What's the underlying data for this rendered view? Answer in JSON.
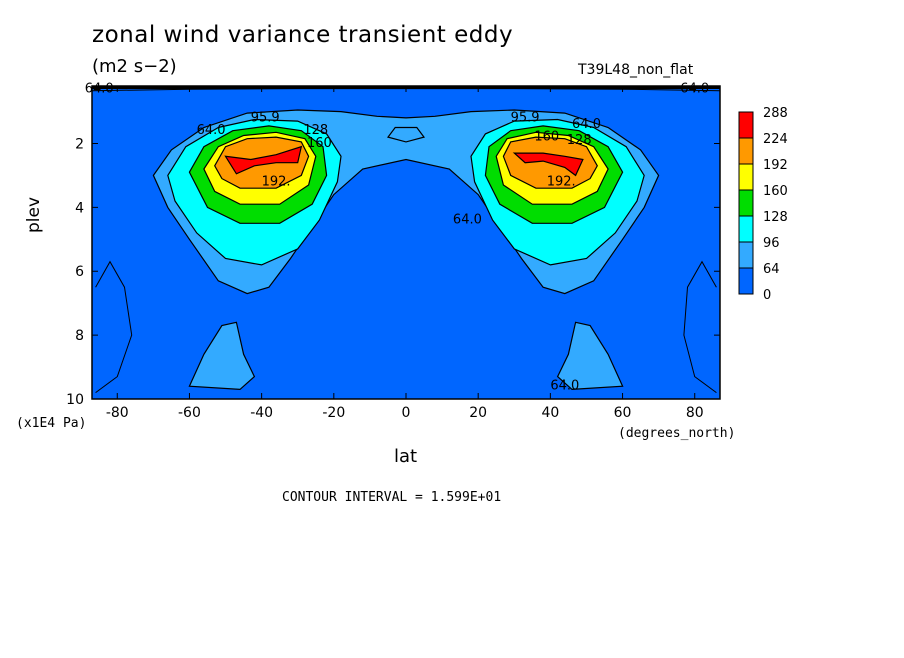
{
  "title": "zonal wind variance transient eddy",
  "units": "(m2 s−2)",
  "run_label": "T39L48_non_flat",
  "contour_interval": "CONTOUR INTERVAL = 1.599E+01",
  "chart_data": {
    "type": "contour",
    "xlabel": "lat",
    "x_units": "(degrees_north)",
    "ylabel": "plev",
    "y_units": "(x1E4 Pa)",
    "xlim": [
      -87,
      87
    ],
    "ylim": [
      10,
      0.2
    ],
    "x_ticks": [
      -80,
      -60,
      -40,
      -20,
      0,
      20,
      40,
      60,
      80
    ],
    "y_ticks": [
      2,
      4,
      6,
      8,
      10
    ],
    "colorbar": {
      "levels": [
        "288",
        "224",
        "192",
        "160",
        "128",
        "96",
        "64",
        "0"
      ],
      "colors": [
        "#ff0000",
        "#ff9900",
        "#ffff00",
        "#00dd00",
        "#00ffff",
        "#33aaff",
        "#0066ff"
      ]
    },
    "contour_labels": [
      {
        "text": "64.0",
        "lat": -85,
        "plev": 0.3
      },
      {
        "text": "64.0",
        "lat": 80,
        "plev": 0.3
      },
      {
        "text": "64.0",
        "lat": -54,
        "plev": 1.6
      },
      {
        "text": "95.9",
        "lat": -39,
        "plev": 1.2
      },
      {
        "text": "128",
        "lat": -25,
        "plev": 1.6
      },
      {
        "text": "160",
        "lat": -24,
        "plev": 2.0
      },
      {
        "text": "192.",
        "lat": -36,
        "plev": 3.2
      },
      {
        "text": "95.9",
        "lat": 33,
        "plev": 1.2
      },
      {
        "text": "64.0",
        "lat": 50,
        "plev": 1.4
      },
      {
        "text": "160",
        "lat": 39,
        "plev": 1.8
      },
      {
        "text": "128",
        "lat": 48,
        "plev": 1.9
      },
      {
        "text": "192.",
        "lat": 43,
        "plev": 3.2
      },
      {
        "text": "64.0",
        "lat": 17,
        "plev": 4.4
      },
      {
        "text": "64.0",
        "lat": 44,
        "plev": 9.6
      }
    ],
    "max_value": 288
  }
}
